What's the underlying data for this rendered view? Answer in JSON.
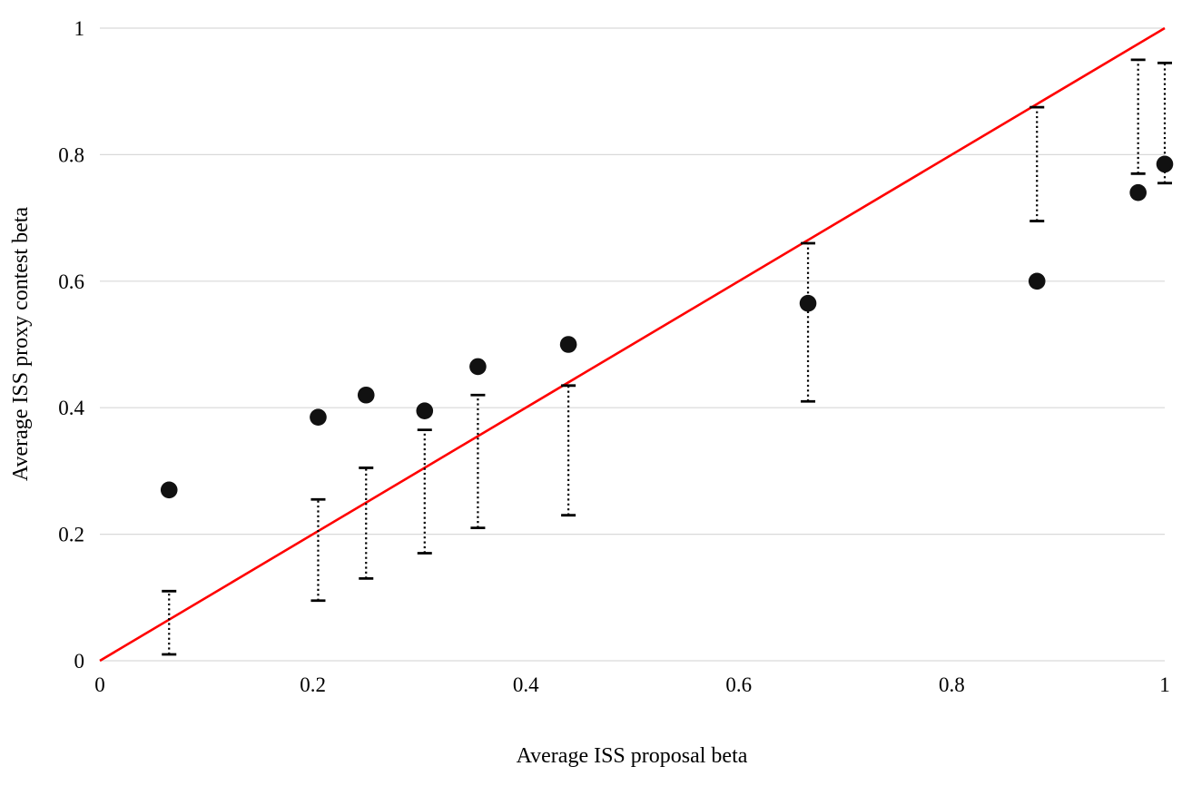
{
  "chart_data": {
    "type": "scatter",
    "title": "",
    "xlabel": "Average ISS proposal beta",
    "ylabel": "Average ISS proxy contest beta",
    "xlim": [
      0,
      1
    ],
    "ylim": [
      0,
      1
    ],
    "x_ticks": [
      0,
      0.2,
      0.4,
      0.6,
      0.8,
      1
    ],
    "x_tick_labels": [
      "0",
      "0.2",
      "0.4",
      "0.6",
      "0.8",
      "1"
    ],
    "y_ticks": [
      0,
      0.2,
      0.4,
      0.6,
      0.8,
      1
    ],
    "y_tick_labels": [
      "0",
      "0.2",
      "0.4",
      "0.6",
      "0.8",
      "1"
    ],
    "grid": "horizontal",
    "legend": "none",
    "colors": {
      "grid": "#d9d9d9",
      "marker": "#111111",
      "error_bar": "#000000",
      "reference_line": "#ff0000",
      "background": "#ffffff"
    },
    "reference_line": {
      "name": "45-degree-identity-line",
      "from": [
        0,
        0
      ],
      "to": [
        1,
        1
      ]
    },
    "series": [
      {
        "name": "Average ISS proxy contest beta vs Average ISS proposal beta",
        "marker": "filled-circle",
        "error_bar_style": "dotted-with-caps",
        "points": [
          {
            "x": 0.065,
            "y": 0.27,
            "bar_low": 0.01,
            "bar_high": 0.11
          },
          {
            "x": 0.205,
            "y": 0.385,
            "bar_low": 0.095,
            "bar_high": 0.255
          },
          {
            "x": 0.25,
            "y": 0.42,
            "bar_low": 0.13,
            "bar_high": 0.305
          },
          {
            "x": 0.305,
            "y": 0.395,
            "bar_low": 0.17,
            "bar_high": 0.365
          },
          {
            "x": 0.355,
            "y": 0.465,
            "bar_low": 0.21,
            "bar_high": 0.42
          },
          {
            "x": 0.44,
            "y": 0.5,
            "bar_low": 0.23,
            "bar_high": 0.435
          },
          {
            "x": 0.665,
            "y": 0.565,
            "bar_low": 0.41,
            "bar_high": 0.66
          },
          {
            "x": 0.88,
            "y": 0.6,
            "bar_low": 0.695,
            "bar_high": 0.875
          },
          {
            "x": 0.975,
            "y": 0.74,
            "bar_low": 0.77,
            "bar_high": 0.95
          },
          {
            "x": 1.0,
            "y": 0.785,
            "bar_low": 0.755,
            "bar_high": 0.945
          }
        ]
      }
    ]
  }
}
